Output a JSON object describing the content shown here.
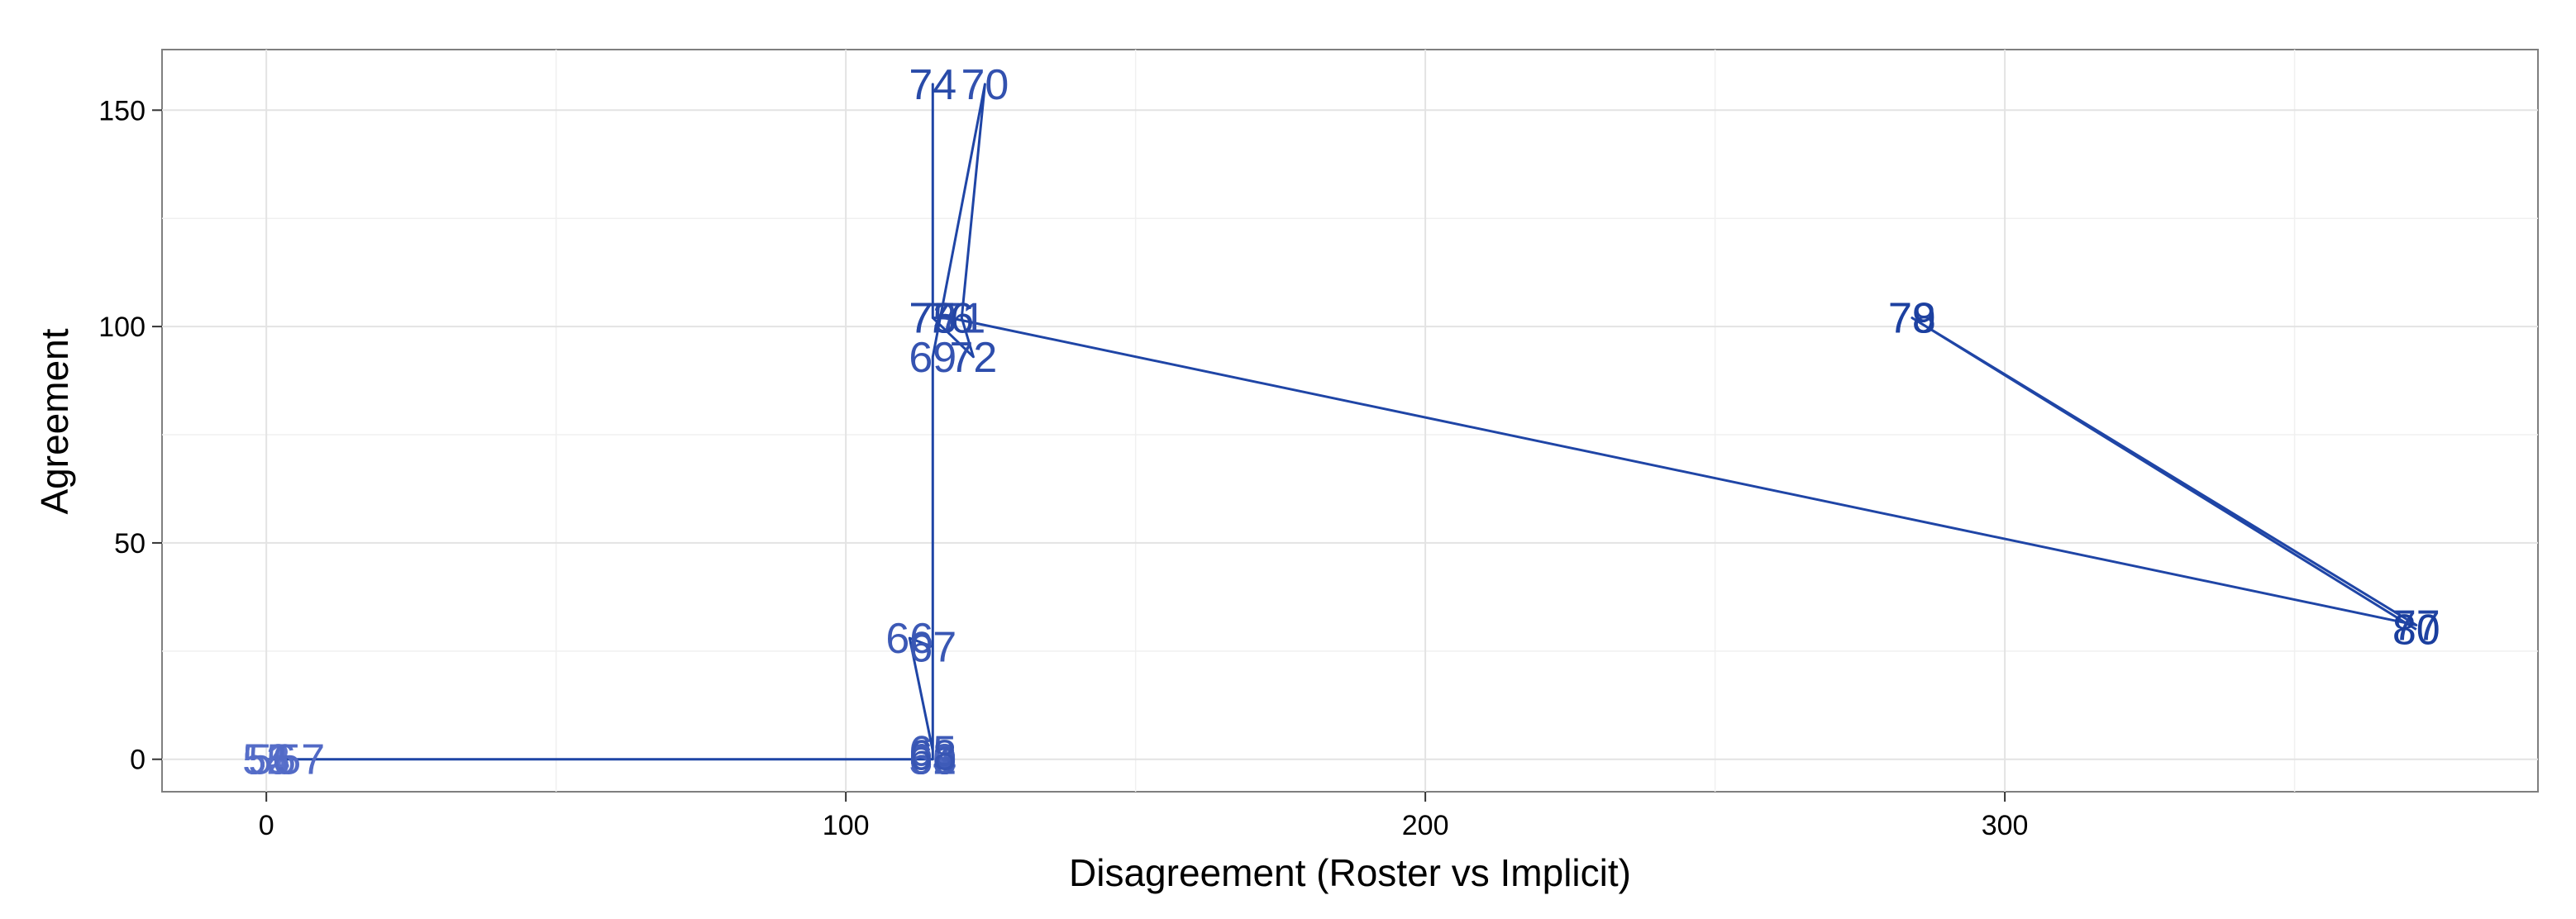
{
  "chart_data": {
    "type": "line",
    "title": "",
    "xlabel": "Disagreement (Roster vs Implicit)",
    "ylabel": "Agreement",
    "xlim": [
      -18,
      392
    ],
    "ylim": [
      -7.5,
      164
    ],
    "x_ticks": [
      0,
      100,
      200,
      300
    ],
    "y_ticks": [
      0,
      50,
      100,
      150
    ],
    "grid": true,
    "legend": "none",
    "line_color": "#1f45a6",
    "label_color_range": [
      "#6076d0",
      "#1a3e9e"
    ],
    "points": [
      {
        "label": "51",
        "x": 0,
        "y": 0
      },
      {
        "label": "52",
        "x": 0,
        "y": 0
      },
      {
        "label": "53",
        "x": 0,
        "y": 0
      },
      {
        "label": "54",
        "x": 0,
        "y": 0
      },
      {
        "label": "55",
        "x": 0,
        "y": 0
      },
      {
        "label": "56",
        "x": 1,
        "y": 0
      },
      {
        "label": "57",
        "x": 6,
        "y": 0
      },
      {
        "label": "58",
        "x": 115,
        "y": 0
      },
      {
        "label": "59",
        "x": 115,
        "y": 0
      },
      {
        "label": "60",
        "x": 115,
        "y": 0
      },
      {
        "label": "61",
        "x": 115,
        "y": 0
      },
      {
        "label": "62",
        "x": 115,
        "y": 0
      },
      {
        "label": "63",
        "x": 115,
        "y": 0
      },
      {
        "label": "64",
        "x": 115,
        "y": 0
      },
      {
        "label": "65",
        "x": 115,
        "y": 2
      },
      {
        "label": "66",
        "x": 111,
        "y": 28
      },
      {
        "label": "67",
        "x": 115,
        "y": 26
      },
      {
        "label": "68",
        "x": 115,
        "y": 1
      },
      {
        "label": "69",
        "x": 115,
        "y": 93
      },
      {
        "label": "70",
        "x": 124,
        "y": 156
      },
      {
        "label": "71",
        "x": 120,
        "y": 102
      },
      {
        "label": "72",
        "x": 122,
        "y": 93
      },
      {
        "label": "73",
        "x": 115,
        "y": 102
      },
      {
        "label": "74",
        "x": 115,
        "y": 156
      },
      {
        "label": "75",
        "x": 115,
        "y": 102
      },
      {
        "label": "76",
        "x": 118,
        "y": 102
      },
      {
        "label": "77",
        "x": 371,
        "y": 31
      },
      {
        "label": "78",
        "x": 284,
        "y": 102
      },
      {
        "label": "79",
        "x": 284,
        "y": 102
      },
      {
        "label": "80",
        "x": 371,
        "y": 30
      }
    ]
  }
}
